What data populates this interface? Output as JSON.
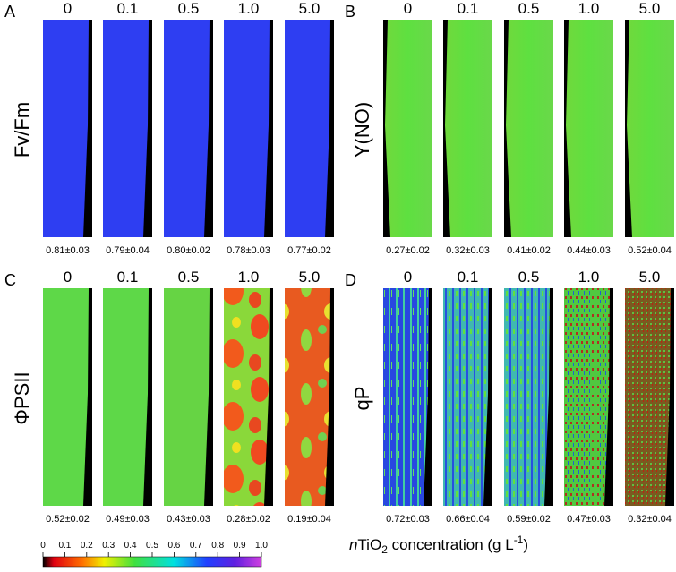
{
  "panels": [
    {
      "letter": "A",
      "ylabel": "Fv/Fm",
      "columns": [
        "0",
        "0.1",
        "0.5",
        "1.0",
        "5.0"
      ],
      "values": [
        "0.81±0.03",
        "0.79±0.04",
        "0.80±0.02",
        "0.78±0.03",
        "0.77±0.02"
      ]
    },
    {
      "letter": "B",
      "ylabel": "Y(NO)",
      "columns": [
        "0",
        "0.1",
        "0.5",
        "1.0",
        "5.0"
      ],
      "values": [
        "0.27±0.02",
        "0.32±0.03",
        "0.41±0.02",
        "0.44±0.03",
        "0.52±0.04"
      ]
    },
    {
      "letter": "C",
      "ylabel": "ΦPSII",
      "columns": [
        "0",
        "0.1",
        "0.5",
        "1.0",
        "5.0"
      ],
      "values": [
        "0.52±0.02",
        "0.49±0.03",
        "0.43±0.03",
        "0.28±0.02",
        "0.19±0.04"
      ]
    },
    {
      "letter": "D",
      "ylabel": "qP",
      "columns": [
        "0",
        "0.1",
        "0.5",
        "1.0",
        "5.0"
      ],
      "values": [
        "0.72±0.03",
        "0.66±0.04",
        "0.59±0.02",
        "0.47±0.03",
        "0.32±0.04"
      ]
    }
  ],
  "colorbar": {
    "ticks": [
      "0",
      "0.1",
      "0.2",
      "0.3",
      "0.4",
      "0.5",
      "0.6",
      "0.7",
      "0.8",
      "0.9",
      "1.0"
    ],
    "label": {
      "italic": "n",
      "base": "TiO",
      "sub": "2",
      "middle": " concentration (g L",
      "sup": "-1",
      "end": ")"
    }
  }
}
